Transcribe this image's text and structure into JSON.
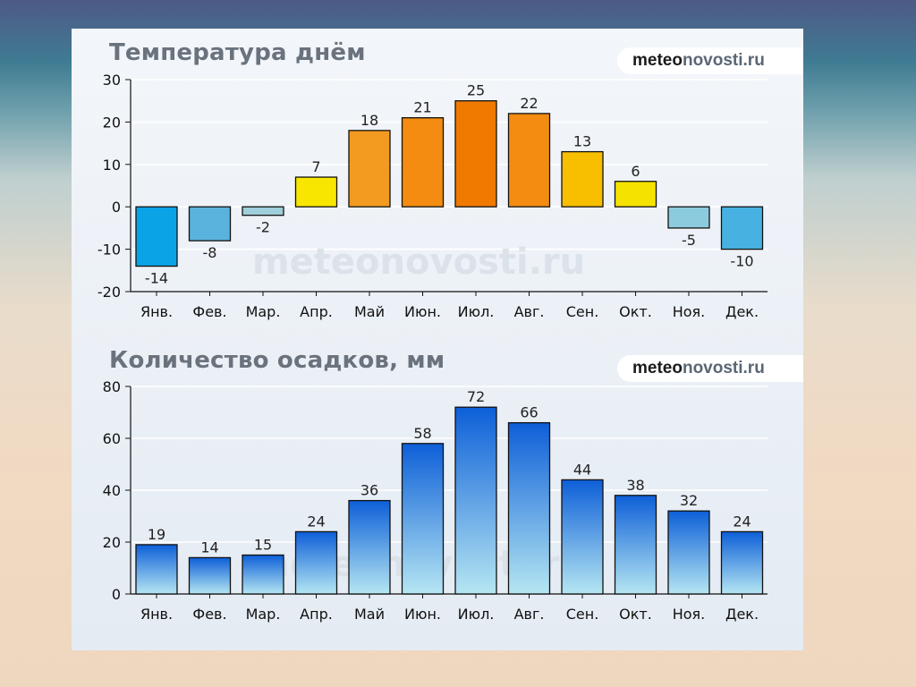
{
  "charts": [
    {
      "title": "Температура днём",
      "brand": {
        "part1": "meteo",
        "part2": "novosti.ru"
      },
      "watermark": "meteonovosti.ru"
    },
    {
      "title": "Количество осадков, мм",
      "brand": {
        "part1": "meteo",
        "part2": "novosti.ru"
      },
      "watermark": "meteonovosti.ru"
    }
  ],
  "chart_data": [
    {
      "type": "bar",
      "title": "Температура днём",
      "categories": [
        "Янв.",
        "Фев.",
        "Мар.",
        "Апр.",
        "Май",
        "Июн.",
        "Июл.",
        "Авг.",
        "Сен.",
        "Окт.",
        "Ноя.",
        "Дек."
      ],
      "values": [
        -14,
        -8,
        -2,
        7,
        18,
        21,
        25,
        22,
        13,
        6,
        -5,
        -10
      ],
      "value_labels": [
        "-14",
        "-8",
        "-2",
        "7",
        "18",
        "21",
        "25",
        "22",
        "13",
        "6",
        "-5",
        "-10"
      ],
      "ylim": [
        -20,
        30
      ],
      "yticks": [
        "30",
        "20",
        "10",
        "0",
        "-10",
        "-20"
      ],
      "grid": true,
      "colors": [
        "#0aa3e6",
        "#5ab3dd",
        "#9ecfda",
        "#f8e600",
        "#f39a20",
        "#f38c10",
        "#f07a00",
        "#f38c10",
        "#f8be00",
        "#f6e200",
        "#8ccbdd",
        "#47b2e2"
      ]
    },
    {
      "type": "bar",
      "title": "Количество осадков, мм",
      "categories": [
        "Янв.",
        "Фев.",
        "Мар.",
        "Апр.",
        "Май",
        "Июн.",
        "Июл.",
        "Авг.",
        "Сен.",
        "Окт.",
        "Ноя.",
        "Дек."
      ],
      "values": [
        19,
        14,
        15,
        24,
        36,
        58,
        72,
        66,
        44,
        38,
        32,
        24
      ],
      "value_labels": [
        "19",
        "14",
        "15",
        "24",
        "36",
        "58",
        "72",
        "66",
        "44",
        "38",
        "32",
        "24"
      ],
      "ylim": [
        0,
        80
      ],
      "yticks": [
        "80",
        "60",
        "40",
        "20",
        "0"
      ],
      "grid": true,
      "colors": {
        "top": "#0d5fd8",
        "bottom": "#b5e6f2"
      }
    }
  ]
}
